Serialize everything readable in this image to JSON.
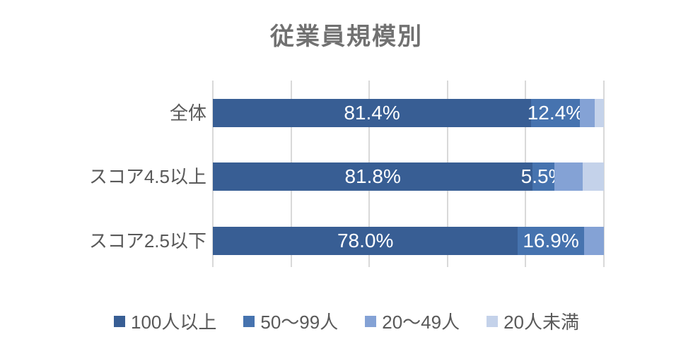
{
  "title": "従業員規模別",
  "chart_data": {
    "type": "bar",
    "subtype": "stacked-horizontal",
    "title": "従業員規模別",
    "categories": [
      "全体",
      "スコア4.5以上",
      "スコア2.5以下"
    ],
    "series": [
      {
        "name": "100人以上",
        "color": "#385e94",
        "values": [
          81.4,
          81.8,
          78.0
        ],
        "labels": [
          "81.4%",
          "81.8%",
          "78.0%"
        ]
      },
      {
        "name": "50〜99人",
        "color": "#4673af",
        "values": [
          12.4,
          5.5,
          16.9
        ],
        "labels": [
          "12.4%",
          "5.5%",
          "16.9%"
        ]
      },
      {
        "name": "20〜49人",
        "color": "#84a2d5",
        "values": [
          3.8,
          7.3,
          5.1
        ],
        "labels": [
          "",
          "",
          ""
        ]
      },
      {
        "name": "20人未満",
        "color": "#c4d2ea",
        "values": [
          2.4,
          5.4,
          0.0
        ],
        "labels": [
          "",
          "",
          ""
        ]
      }
    ],
    "xlim": [
      0,
      100
    ],
    "gridlines_percent": [
      0,
      20,
      40,
      60,
      80,
      100
    ],
    "grid": true,
    "legend_position": "bottom",
    "data_label_color": "#ffffff",
    "gridline_color": "#d9d9d9",
    "title_color": "#717171",
    "axis_label_color": "#595959"
  }
}
